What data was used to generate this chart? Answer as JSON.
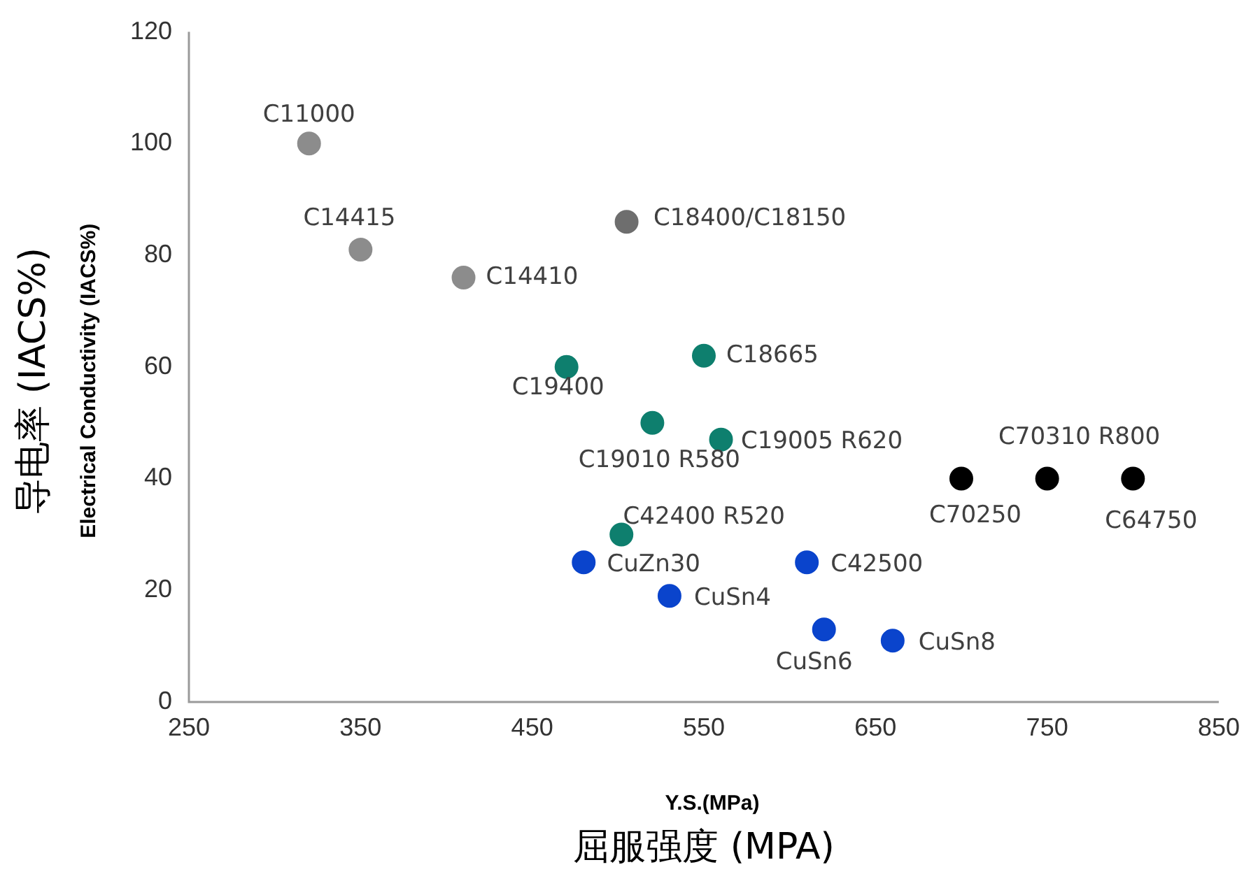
{
  "chart_data": {
    "type": "scatter",
    "xlabel": "Y.S.(MPa)\n屈服强度 (MPA)",
    "ylabel": "Electrical Conductivity (IACS%)\n导电率 (IACS%)",
    "xlim": [
      250,
      850
    ],
    "xticks": [
      250,
      350,
      450,
      550,
      650,
      750,
      850
    ],
    "ylim": [
      0,
      120
    ],
    "yticks": [
      0,
      20,
      40,
      60,
      80,
      100,
      120
    ],
    "grid": false,
    "legend": false,
    "marker": "circle",
    "series": [
      {
        "color": "#8c8c8c",
        "x": [
          320,
          350,
          410
        ],
        "values": [
          100,
          81,
          76
        ]
      },
      {
        "color": "#6e6e6e",
        "x": [
          505
        ],
        "values": [
          86
        ]
      },
      {
        "color": "#0e7f6e",
        "x": [
          470,
          550,
          520,
          560,
          502
        ],
        "values": [
          60,
          62,
          50,
          47,
          30
        ]
      },
      {
        "color": "#0a44cc",
        "x": [
          480,
          530,
          610,
          620,
          660
        ],
        "values": [
          25,
          19,
          25,
          13,
          11
        ]
      },
      {
        "color": "#000000",
        "x": [
          700,
          750,
          800
        ],
        "values": [
          40,
          40,
          40
        ]
      }
    ],
    "annotations": [
      {
        "text": "C11000",
        "x": 320,
        "y": 100
      },
      {
        "text": "C14415",
        "x": 350,
        "y": 81
      },
      {
        "text": "C14410",
        "x": 410,
        "y": 76
      },
      {
        "text": "C18400/C18150",
        "x": 505,
        "y": 86
      },
      {
        "text": "C19400",
        "x": 470,
        "y": 60
      },
      {
        "text": "C18665",
        "x": 550,
        "y": 62
      },
      {
        "text": "C19010 R580",
        "x": 520,
        "y": 50
      },
      {
        "text": "C19005 R620",
        "x": 560,
        "y": 47
      },
      {
        "text": "C42400 R520",
        "x": 502,
        "y": 30
      },
      {
        "text": "CuZn30",
        "x": 480,
        "y": 25
      },
      {
        "text": "CuSn4",
        "x": 530,
        "y": 19
      },
      {
        "text": "C42500",
        "x": 610,
        "y": 25
      },
      {
        "text": "CuSn6",
        "x": 620,
        "y": 13
      },
      {
        "text": "CuSn8",
        "x": 660,
        "y": 11
      },
      {
        "text": "C70250",
        "x": 700,
        "y": 40
      },
      {
        "text": "C70310 R800",
        "x": 750,
        "y": 40
      },
      {
        "text": "C64750",
        "x": 800,
        "y": 40
      }
    ]
  }
}
